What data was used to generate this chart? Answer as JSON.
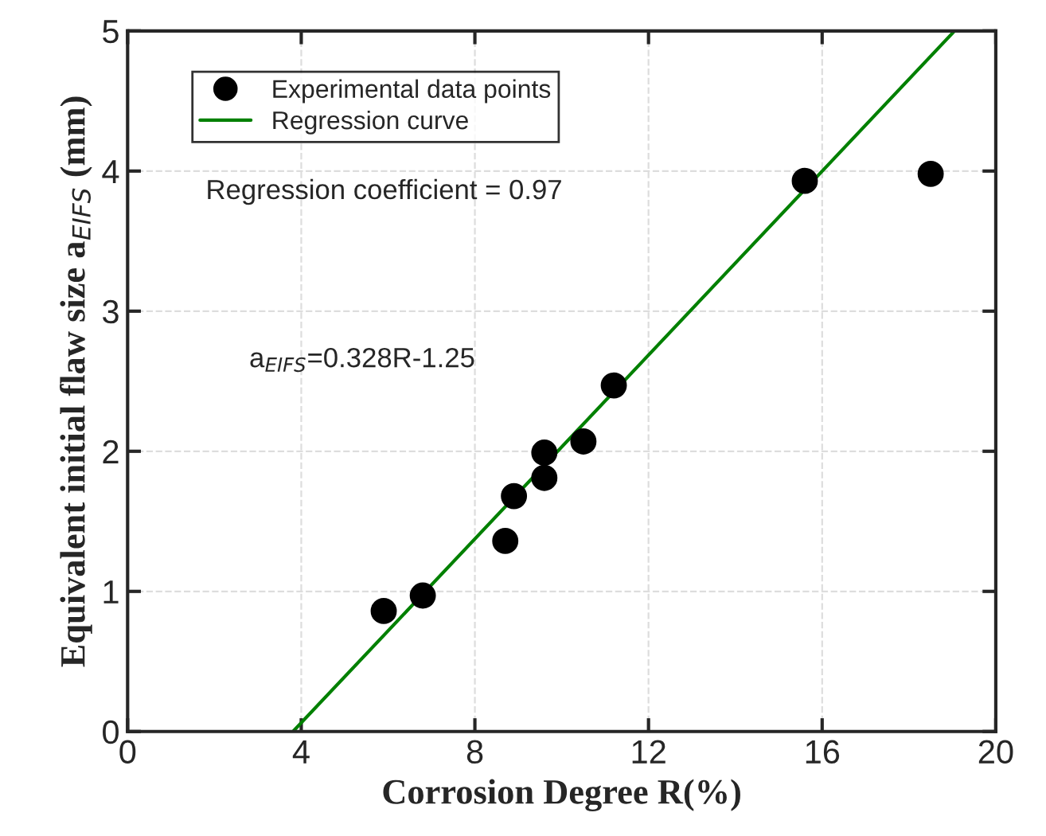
{
  "chart_data": {
    "type": "scatter",
    "xlabel": "Corrosion Degree R(%)",
    "ylabel": "Equivalent initial flaw size a$_{EIFS}$ (mm)",
    "xlim": [
      0,
      20
    ],
    "xticks": [
      0,
      4,
      8,
      12,
      16,
      20
    ],
    "ylim": [
      0,
      5
    ],
    "yticks": [
      0,
      1,
      2,
      3,
      4,
      5
    ],
    "grid": true,
    "legend": "top left",
    "series": [
      {
        "name": "Experimental data points",
        "marker": "circle",
        "color": "#000000",
        "x": [
          5.9,
          6.8,
          8.7,
          8.9,
          9.6,
          9.6,
          10.5,
          11.2,
          15.6,
          18.5
        ],
        "values": [
          0.86,
          0.97,
          1.36,
          1.68,
          1.99,
          1.81,
          2.07,
          2.47,
          3.93,
          3.98
        ]
      },
      {
        "name": "Regression curve",
        "type": "line",
        "color": "#008000",
        "x": [
          3.81,
          19.05
        ],
        "values": [
          0,
          5
        ]
      }
    ],
    "annotations": [
      "Regression coefficient = 0.97",
      "a$_{EIFS}$=0.328R-1.25"
    ]
  }
}
